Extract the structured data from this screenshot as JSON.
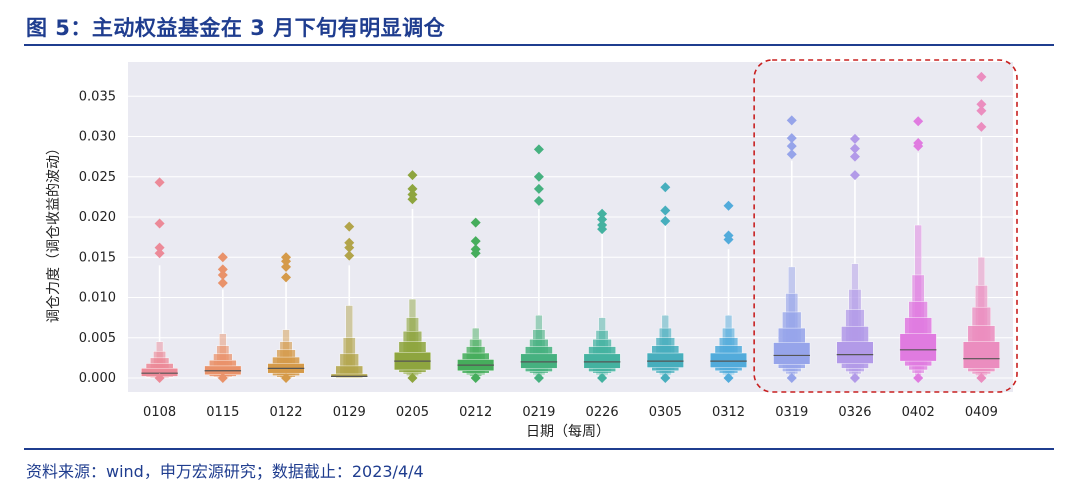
{
  "header": {
    "title": "图 5：主动权益基金在 3 月下旬有明显调仓"
  },
  "footer": {
    "source": "资料来源：wind，申万宏源研究；数据截止：2023/4/4"
  },
  "chart_data": {
    "type": "boxen",
    "title": "图 5：主动权益基金在 3 月下旬有明显调仓",
    "xlabel": "日期（每周）",
    "ylabel": "调仓力度（调仓收益的波动）",
    "ylim": [
      0,
      0.038
    ],
    "yticks": [
      "0.000",
      "0.005",
      "0.010",
      "0.015",
      "0.020",
      "0.025",
      "0.030",
      "0.035"
    ],
    "grid": true,
    "highlight": {
      "categories": [
        "0319",
        "0326",
        "0402",
        "0409"
      ],
      "style": "red-dashed-rounded-box"
    },
    "categories": [
      "0108",
      "0115",
      "0122",
      "0129",
      "0205",
      "0212",
      "0219",
      "0226",
      "0305",
      "0312",
      "0319",
      "0326",
      "0402",
      "0409"
    ],
    "colors": [
      "#ec8a98",
      "#e9926a",
      "#d59a49",
      "#b2a44a",
      "#8ea53f",
      "#46ad5c",
      "#46b180",
      "#44b2a0",
      "#47aebd",
      "#52abdb",
      "#96a4ea",
      "#b29ae8",
      "#e07be0",
      "#eb8dbf"
    ],
    "series": [
      {
        "name": "0108",
        "median": 0.0006,
        "boxes": [
          [
            0.0002,
            0.0012
          ],
          [
            0.0001,
            0.0018
          ],
          [
            0.0,
            0.0025
          ],
          [
            0.0,
            0.0033
          ],
          [
            0.0,
            0.0045
          ]
        ],
        "whisker": 0.014,
        "outliers": [
          0.0,
          0.0155,
          0.0162,
          0.0192,
          0.0243
        ]
      },
      {
        "name": "0115",
        "median": 0.0009,
        "boxes": [
          [
            0.0004,
            0.0015
          ],
          [
            0.0002,
            0.0022
          ],
          [
            0.0001,
            0.003
          ],
          [
            0.0,
            0.004
          ],
          [
            0.0,
            0.0055
          ]
        ],
        "whisker": 0.011,
        "outliers": [
          0.0,
          0.0118,
          0.0128,
          0.0135,
          0.015
        ]
      },
      {
        "name": "0122",
        "median": 0.0012,
        "boxes": [
          [
            0.0006,
            0.0018
          ],
          [
            0.0003,
            0.0026
          ],
          [
            0.0001,
            0.0035
          ],
          [
            0.0,
            0.0045
          ],
          [
            0.0,
            0.006
          ]
        ],
        "whisker": 0.0125,
        "outliers": [
          0.0,
          0.0125,
          0.0138,
          0.0145,
          0.015
        ]
      },
      {
        "name": "0129",
        "median": 0.0002,
        "boxes": [
          [
            0.0001,
            0.0005
          ],
          [
            0.0,
            0.0015
          ],
          [
            0.0,
            0.003
          ],
          [
            0.0,
            0.005
          ],
          [
            0.0,
            0.009
          ]
        ],
        "whisker": 0.014,
        "outliers": [
          0.0152,
          0.0162,
          0.0168,
          0.0188
        ]
      },
      {
        "name": "0205",
        "median": 0.0021,
        "boxes": [
          [
            0.001,
            0.0032
          ],
          [
            0.0007,
            0.0045
          ],
          [
            0.0005,
            0.0058
          ],
          [
            0.0003,
            0.0075
          ],
          [
            0.0002,
            0.0098
          ]
        ],
        "whisker": 0.021,
        "outliers": [
          0.0,
          0.0222,
          0.0228,
          0.0235,
          0.0252
        ]
      },
      {
        "name": "0212",
        "median": 0.0016,
        "boxes": [
          [
            0.0009,
            0.0023
          ],
          [
            0.0006,
            0.0031
          ],
          [
            0.0004,
            0.0039
          ],
          [
            0.0002,
            0.0048
          ],
          [
            0.0001,
            0.0062
          ]
        ],
        "whisker": 0.015,
        "outliers": [
          0.0,
          0.0155,
          0.016,
          0.017,
          0.0193
        ]
      },
      {
        "name": "0219",
        "median": 0.002,
        "boxes": [
          [
            0.0012,
            0.003
          ],
          [
            0.0008,
            0.0039
          ],
          [
            0.0006,
            0.0048
          ],
          [
            0.0004,
            0.006
          ],
          [
            0.0002,
            0.0078
          ]
        ],
        "whisker": 0.021,
        "outliers": [
          0.0,
          0.022,
          0.0235,
          0.025,
          0.0284
        ]
      },
      {
        "name": "0226",
        "median": 0.002,
        "boxes": [
          [
            0.0012,
            0.003
          ],
          [
            0.0008,
            0.0039
          ],
          [
            0.0006,
            0.0048
          ],
          [
            0.0004,
            0.0059
          ],
          [
            0.0002,
            0.0075
          ]
        ],
        "whisker": 0.018,
        "outliers": [
          0.0,
          0.0185,
          0.019,
          0.0197,
          0.0204
        ]
      },
      {
        "name": "0305",
        "median": 0.0021,
        "boxes": [
          [
            0.0013,
            0.0031
          ],
          [
            0.0009,
            0.004
          ],
          [
            0.0006,
            0.005
          ],
          [
            0.0004,
            0.0062
          ],
          [
            0.0002,
            0.0078
          ]
        ],
        "whisker": 0.019,
        "outliers": [
          0.0,
          0.0195,
          0.0208,
          0.0237
        ]
      },
      {
        "name": "0312",
        "median": 0.0021,
        "boxes": [
          [
            0.0013,
            0.0031
          ],
          [
            0.0009,
            0.004
          ],
          [
            0.0006,
            0.005
          ],
          [
            0.0004,
            0.0062
          ],
          [
            0.0002,
            0.0078
          ]
        ],
        "whisker": 0.016,
        "outliers": [
          0.0,
          0.0172,
          0.0177,
          0.0214
        ]
      },
      {
        "name": "0319",
        "median": 0.0028,
        "boxes": [
          [
            0.0017,
            0.0044
          ],
          [
            0.0012,
            0.0062
          ],
          [
            0.0008,
            0.0082
          ],
          [
            0.0005,
            0.0105
          ],
          [
            0.0003,
            0.0138
          ]
        ],
        "whisker": 0.027,
        "outliers": [
          0.0,
          0.0278,
          0.0288,
          0.0298,
          0.032
        ]
      },
      {
        "name": "0326",
        "median": 0.0029,
        "boxes": [
          [
            0.0018,
            0.0045
          ],
          [
            0.0012,
            0.0064
          ],
          [
            0.0008,
            0.0085
          ],
          [
            0.0005,
            0.011
          ],
          [
            0.0003,
            0.0142
          ]
        ],
        "whisker": 0.025,
        "outliers": [
          0.0,
          0.0252,
          0.0275,
          0.0285,
          0.0297
        ]
      },
      {
        "name": "0402",
        "median": 0.0035,
        "boxes": [
          [
            0.0021,
            0.0055
          ],
          [
            0.0015,
            0.0075
          ],
          [
            0.001,
            0.0095
          ],
          [
            0.0006,
            0.0128
          ],
          [
            0.0003,
            0.019
          ]
        ],
        "whisker": 0.028,
        "outliers": [
          0.0,
          0.0288,
          0.0292,
          0.0319
        ]
      },
      {
        "name": "0409",
        "median": 0.0024,
        "boxes": [
          [
            0.0012,
            0.0045
          ],
          [
            0.0008,
            0.0065
          ],
          [
            0.0005,
            0.0088
          ],
          [
            0.0003,
            0.0115
          ],
          [
            0.0001,
            0.015
          ]
        ],
        "whisker": 0.03,
        "outliers": [
          0.0,
          0.0312,
          0.0332,
          0.034,
          0.0374
        ]
      }
    ]
  }
}
